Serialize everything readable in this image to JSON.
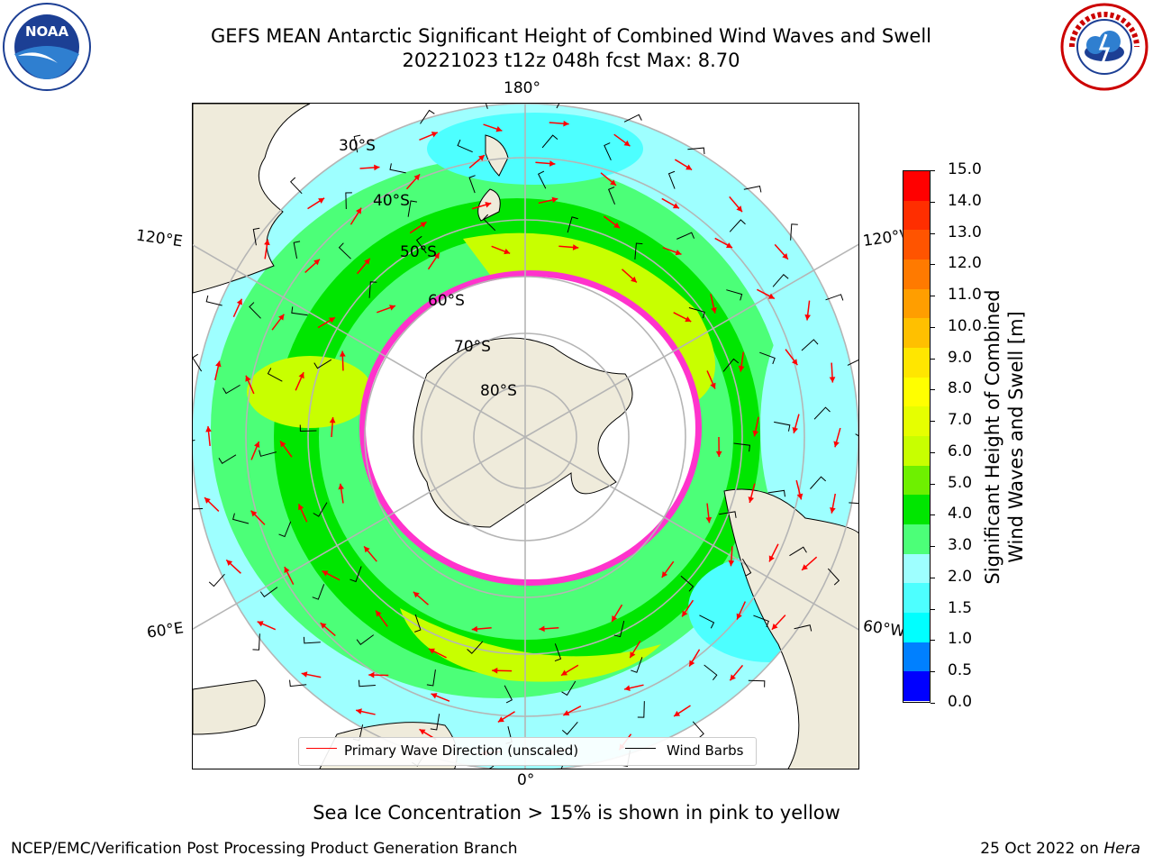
{
  "header": {
    "title_line1": "GEFS MEAN Antarctic Significant Height of Combined Wind Waves and Swell",
    "title_line2": "20221023 t12z 048h fcst   Max: 8.70"
  },
  "logos": {
    "left_logo_text": "NOAA",
    "right_logo_text": "NATIONAL WEATHER SERVICE"
  },
  "map": {
    "projection": "south-polar-stereographic",
    "longitude_labels": {
      "top": "180°",
      "bottom": "0°",
      "left_upper": "120°E",
      "left_lower": "60°E",
      "right_upper": "120°W",
      "right_lower": "60°W"
    },
    "latitude_labels": [
      "30°S",
      "40°S",
      "50°S",
      "60°S",
      "70°S",
      "80°S"
    ],
    "colors": {
      "land": "#efebdb",
      "ice_edge": "#ff33cc",
      "wave_direction": "#ff0000",
      "wind_barbs": "#000000",
      "graticule": "#b5b5b5"
    }
  },
  "legend": {
    "wave_label": "Primary Wave Direction (unscaled)",
    "wind_label": "Wind Barbs"
  },
  "colorbar": {
    "label_line1": "Significant Height of Combined",
    "label_line2": "Wind Waves and Swell [m]",
    "ticks": [
      "15.0",
      "14.0",
      "13.0",
      "12.0",
      "11.0",
      "10.0",
      "9.0",
      "8.0",
      "7.0",
      "6.0",
      "5.0",
      "4.0",
      "3.0",
      "2.0",
      "1.5",
      "1.0",
      "0.5",
      "0.0"
    ],
    "colors_top_to_bottom": [
      "#ff0000",
      "#ff2e00",
      "#ff5400",
      "#ff7a00",
      "#ff9e00",
      "#ffc000",
      "#ffe600",
      "#ffff00",
      "#e6ff00",
      "#c8ff00",
      "#6ef000",
      "#00e600",
      "#4cff78",
      "#9effff",
      "#4dffff",
      "#00ffff",
      "#0080ff",
      "#0000ff"
    ]
  },
  "footer": {
    "note": "Sea Ice Concentration > 15% is shown in pink to yellow",
    "left": "NCEP/EMC/Verification Post Processing Product Generation Branch",
    "right_date": "25 Oct 2022 on ",
    "right_machine": "Hera"
  }
}
